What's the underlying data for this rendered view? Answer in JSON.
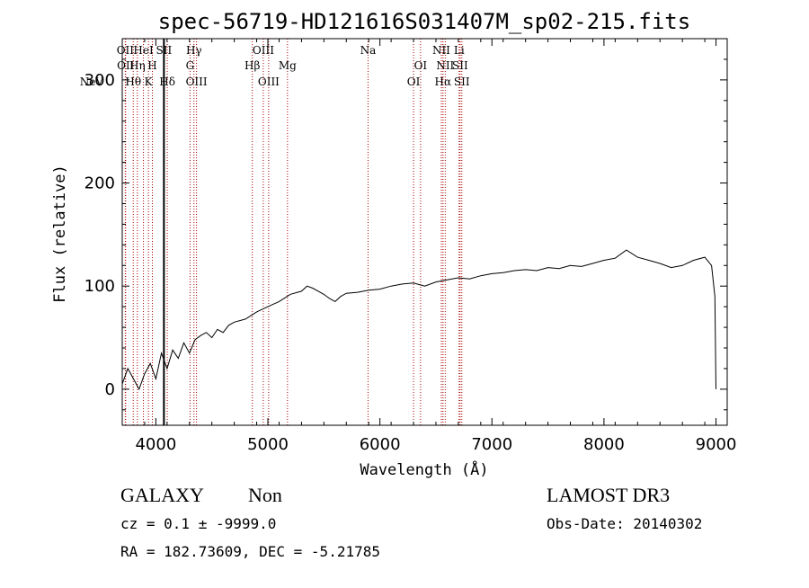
{
  "chart_data": {
    "type": "line",
    "title": "spec-56719-HD121616S031407M_sp02-215.fits",
    "xlabel": "Wavelength (Å)",
    "ylabel": "Flux (relative)",
    "xlim": [
      3700,
      9100
    ],
    "ylim": [
      -35,
      340
    ],
    "x_ticks": [
      4000,
      5000,
      6000,
      7000,
      8000,
      9000
    ],
    "y_ticks": [
      0,
      100,
      200,
      300
    ],
    "x_tick_labels": [
      "4000",
      "5000",
      "6000",
      "7000",
      "8000",
      "9000"
    ],
    "y_tick_labels": [
      "0",
      "100",
      "200",
      "300"
    ],
    "grid": false,
    "spectrum": {
      "x": [
        3700,
        3750,
        3800,
        3850,
        3900,
        3950,
        4000,
        4050,
        4100,
        4150,
        4200,
        4250,
        4300,
        4350,
        4400,
        4450,
        4500,
        4550,
        4600,
        4650,
        4700,
        4800,
        4900,
        5000,
        5100,
        5200,
        5300,
        5350,
        5400,
        5450,
        5500,
        5550,
        5600,
        5650,
        5700,
        5800,
        5900,
        6000,
        6100,
        6200,
        6300,
        6400,
        6500,
        6600,
        6700,
        6800,
        6900,
        7000,
        7100,
        7200,
        7300,
        7400,
        7500,
        7600,
        7700,
        7800,
        7900,
        8000,
        8100,
        8200,
        8300,
        8400,
        8500,
        8600,
        8700,
        8800,
        8900,
        8960,
        8990,
        9000
      ],
      "y": [
        5,
        20,
        10,
        0,
        15,
        25,
        10,
        35,
        20,
        38,
        30,
        45,
        35,
        48,
        52,
        55,
        50,
        58,
        55,
        62,
        65,
        68,
        75,
        80,
        85,
        92,
        95,
        100,
        98,
        95,
        92,
        88,
        85,
        90,
        93,
        94,
        96,
        97,
        100,
        102,
        103,
        100,
        104,
        106,
        108,
        107,
        110,
        112,
        113,
        115,
        116,
        115,
        118,
        117,
        120,
        119,
        122,
        125,
        127,
        135,
        128,
        125,
        122,
        118,
        120,
        125,
        128,
        120,
        90,
        0
      ]
    },
    "spectral_lines": [
      {
        "name": "NeV",
        "wavelength": 3426,
        "row": 3,
        "style": "dotted"
      },
      {
        "name": "OII",
        "wavelength": 3727,
        "row": 1,
        "style": "dotted"
      },
      {
        "name": "OII",
        "wavelength": 3730,
        "row": 2,
        "style": "dotted"
      },
      {
        "name": "Hθ",
        "wavelength": 3798,
        "row": 3,
        "style": "dotted"
      },
      {
        "name": "Hη",
        "wavelength": 3835,
        "row": 2,
        "style": "dotted"
      },
      {
        "name": "HeI",
        "wavelength": 3889,
        "row": 1,
        "style": "dotted"
      },
      {
        "name": "K",
        "wavelength": 3934,
        "row": 3,
        "style": "dotted"
      },
      {
        "name": "H",
        "wavelength": 3969,
        "row": 2,
        "style": "dotted"
      },
      {
        "name": "SII",
        "wavelength": 4072,
        "row": 1,
        "style": "solid"
      },
      {
        "name": "Hδ",
        "wavelength": 4102,
        "row": 3,
        "style": "dotted"
      },
      {
        "name": "Hγ",
        "wavelength": 4340,
        "row": 1,
        "style": "dotted"
      },
      {
        "name": "G",
        "wavelength": 4305,
        "row": 2,
        "style": "dotted"
      },
      {
        "name": "OIII",
        "wavelength": 4363,
        "row": 3,
        "style": "dotted"
      },
      {
        "name": "Hβ",
        "wavelength": 4861,
        "row": 2,
        "style": "dotted"
      },
      {
        "name": "OIII",
        "wavelength": 4959,
        "row": 1,
        "style": "dotted"
      },
      {
        "name": "OIII",
        "wavelength": 5007,
        "row": 3,
        "style": "dotted"
      },
      {
        "name": "Mg",
        "wavelength": 5175,
        "row": 2,
        "style": "dotted"
      },
      {
        "name": "Na",
        "wavelength": 5894,
        "row": 1,
        "style": "dotted"
      },
      {
        "name": "OI",
        "wavelength": 6300,
        "row": 3,
        "style": "dotted"
      },
      {
        "name": "OI",
        "wavelength": 6363,
        "row": 2,
        "style": "dotted"
      },
      {
        "name": "NII",
        "wavelength": 6548,
        "row": 1,
        "style": "dotted"
      },
      {
        "name": "Hα",
        "wavelength": 6563,
        "row": 3,
        "style": "dotted"
      },
      {
        "name": "NII",
        "wavelength": 6583,
        "row": 2,
        "style": "dotted"
      },
      {
        "name": "Li",
        "wavelength": 6707,
        "row": 1,
        "style": "dotted"
      },
      {
        "name": "SII",
        "wavelength": 6716,
        "row": 2,
        "style": "dotted"
      },
      {
        "name": "SII",
        "wavelength": 6731,
        "row": 3,
        "style": "dotted"
      }
    ],
    "colors": {
      "spectrum": "#000000",
      "lines": "#aa0000"
    }
  },
  "info": {
    "class": "GALAXY",
    "subclass": "Non",
    "cz": "cz = 0.1 ± -9999.0",
    "radec": "RA = 182.73609, DEC =  -5.21785",
    "survey": "LAMOST DR3",
    "obsdate": "Obs-Date: 20140302"
  }
}
